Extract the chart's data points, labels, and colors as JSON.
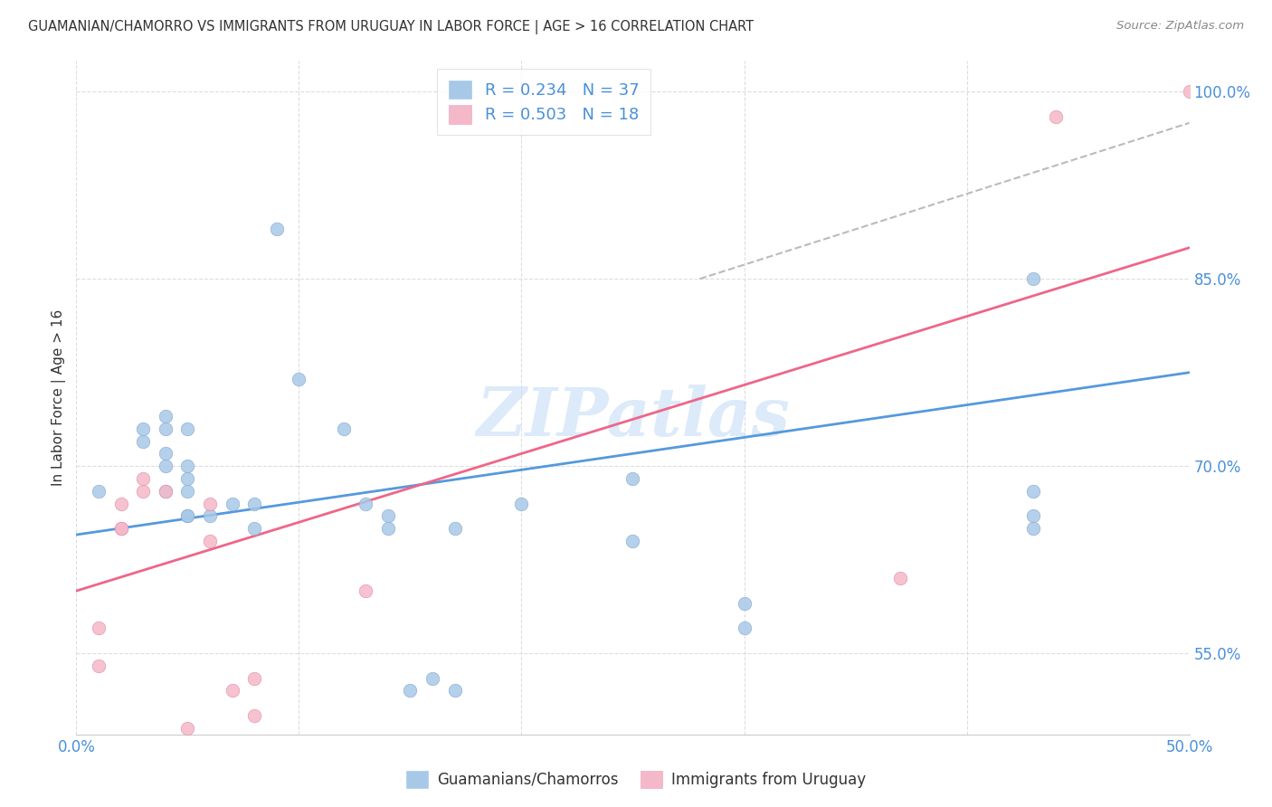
{
  "title": "GUAMANIAN/CHAMORRO VS IMMIGRANTS FROM URUGUAY IN LABOR FORCE | AGE > 16 CORRELATION CHART",
  "source": "Source: ZipAtlas.com",
  "ylabel": "In Labor Force | Age > 16",
  "xlim": [
    0.0,
    0.5
  ],
  "ylim": [
    0.485,
    1.025
  ],
  "x_ticks": [
    0.0,
    0.1,
    0.2,
    0.3,
    0.4,
    0.5
  ],
  "x_tick_labels": [
    "0.0%",
    "",
    "",
    "",
    "",
    "50.0%"
  ],
  "y_ticks": [
    0.55,
    0.7,
    0.85,
    1.0
  ],
  "y_tick_labels": [
    "55.0%",
    "70.0%",
    "85.0%",
    "100.0%"
  ],
  "watermark": "ZIPatlas",
  "blue_color": "#a8c8e8",
  "pink_color": "#f5b8c8",
  "blue_line_color": "#5599dd",
  "pink_line_color": "#ee6688",
  "dashed_line_color": "#bbbbbb",
  "legend_label_blue": "Guamanians/Chamorros",
  "legend_label_pink": "Immigrants from Uruguay",
  "blue_scatter_x": [
    0.01,
    0.03,
    0.03,
    0.04,
    0.04,
    0.04,
    0.04,
    0.04,
    0.05,
    0.05,
    0.05,
    0.05,
    0.05,
    0.05,
    0.06,
    0.07,
    0.08,
    0.08,
    0.09,
    0.1,
    0.12,
    0.13,
    0.14,
    0.14,
    0.15,
    0.16,
    0.17,
    0.17,
    0.2,
    0.25,
    0.25,
    0.3,
    0.3,
    0.43,
    0.43,
    0.43,
    0.43
  ],
  "blue_scatter_y": [
    0.68,
    0.72,
    0.73,
    0.7,
    0.71,
    0.73,
    0.74,
    0.68,
    0.66,
    0.68,
    0.7,
    0.73,
    0.66,
    0.69,
    0.66,
    0.67,
    0.67,
    0.65,
    0.89,
    0.77,
    0.73,
    0.67,
    0.65,
    0.66,
    0.52,
    0.53,
    0.52,
    0.65,
    0.67,
    0.64,
    0.69,
    0.57,
    0.59,
    0.68,
    0.66,
    0.65,
    0.85
  ],
  "pink_scatter_x": [
    0.01,
    0.01,
    0.02,
    0.02,
    0.02,
    0.03,
    0.03,
    0.04,
    0.05,
    0.06,
    0.06,
    0.07,
    0.08,
    0.08,
    0.13,
    0.37,
    0.44,
    0.5
  ],
  "pink_scatter_y": [
    0.54,
    0.57,
    0.65,
    0.67,
    0.65,
    0.68,
    0.69,
    0.68,
    0.49,
    0.64,
    0.67,
    0.52,
    0.5,
    0.53,
    0.6,
    0.61,
    0.98,
    1.0
  ],
  "blue_trendline_x": [
    0.0,
    0.5
  ],
  "blue_trendline_y": [
    0.645,
    0.775
  ],
  "pink_trendline_x": [
    0.0,
    0.5
  ],
  "pink_trendline_y": [
    0.6,
    0.875
  ],
  "dashed_trendline_x": [
    0.28,
    0.5
  ],
  "dashed_trendline_y": [
    0.85,
    0.975
  ],
  "grid_color": "#dddddd",
  "grid_linestyle": "--",
  "background_color": "#ffffff",
  "tick_color": "#4a90d9",
  "text_color": "#333333",
  "source_color": "#888888"
}
